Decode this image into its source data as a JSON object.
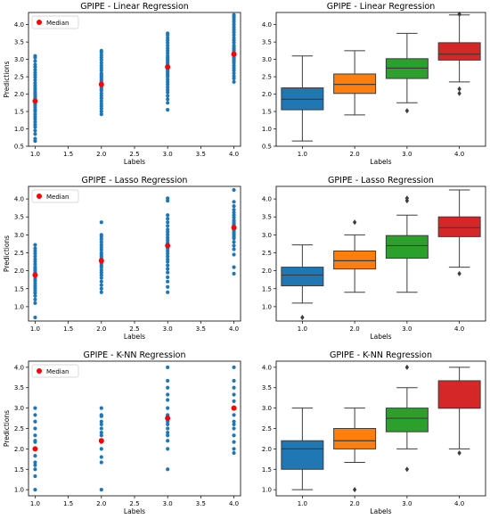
{
  "figure": {
    "title": "",
    "panels_desc": "3x2 grid"
  },
  "chart_data": [
    {
      "type": "scatter",
      "title": "GPIPE - Linear Regression",
      "xlabel": "Labels",
      "ylabel": "Predictions",
      "xlim": [
        0.9,
        4.1
      ],
      "ylim": [
        0.5,
        4.35
      ],
      "xticks": [
        "1.0",
        "1.5",
        "2.0",
        "2.5",
        "3.0",
        "3.5",
        "4.0"
      ],
      "yticks": [
        "0.5",
        "1.0",
        "1.5",
        "2.0",
        "2.5",
        "3.0",
        "3.5",
        "4.0"
      ],
      "legend": {
        "label": "Median",
        "placement": "top-left"
      },
      "colors": {
        "points": "#1f77b4",
        "median": "#ff0000"
      },
      "series": [
        {
          "x": 1.0,
          "values": [
            0.65,
            0.72,
            0.85,
            0.95,
            1.05,
            1.12,
            1.2,
            1.28,
            1.35,
            1.42,
            1.5,
            1.55,
            1.62,
            1.68,
            1.72,
            1.78,
            1.85,
            1.9,
            1.95,
            2.0,
            2.05,
            2.12,
            2.18,
            2.25,
            2.32,
            2.4,
            2.48,
            2.55,
            2.62,
            2.7,
            2.78,
            2.85,
            2.95,
            3.05,
            3.1
          ]
        },
        {
          "x": 2.0,
          "values": [
            1.42,
            1.5,
            1.58,
            1.65,
            1.72,
            1.8,
            1.88,
            1.95,
            2.02,
            2.1,
            2.15,
            2.2,
            2.25,
            2.3,
            2.35,
            2.4,
            2.45,
            2.5,
            2.55,
            2.6,
            2.68,
            2.75,
            2.82,
            2.9,
            2.98,
            3.05,
            3.12,
            3.2,
            3.25
          ]
        },
        {
          "x": 3.0,
          "values": [
            1.55,
            1.75,
            1.85,
            1.95,
            2.05,
            2.12,
            2.2,
            2.28,
            2.35,
            2.42,
            2.5,
            2.55,
            2.6,
            2.65,
            2.7,
            2.75,
            2.8,
            2.85,
            2.9,
            2.95,
            3.0,
            3.05,
            3.1,
            3.18,
            3.25,
            3.32,
            3.4,
            3.48,
            3.55,
            3.62,
            3.7,
            3.75
          ]
        },
        {
          "x": 4.0,
          "values": [
            2.35,
            2.45,
            2.52,
            2.6,
            2.68,
            2.75,
            2.82,
            2.9,
            2.95,
            3.0,
            3.05,
            3.1,
            3.15,
            3.2,
            3.25,
            3.3,
            3.35,
            3.4,
            3.48,
            3.55,
            3.62,
            3.7,
            3.78,
            3.85,
            3.92,
            4.0,
            4.08,
            4.15,
            4.22,
            4.28
          ]
        }
      ],
      "medians": [
        {
          "x": 1.0,
          "y": 1.8
        },
        {
          "x": 2.0,
          "y": 2.28
        },
        {
          "x": 3.0,
          "y": 2.78
        },
        {
          "x": 4.0,
          "y": 3.15
        }
      ]
    },
    {
      "type": "box",
      "title": "GPIPE - Linear Regression",
      "xlabel": "Labels",
      "ylabel": "",
      "ylim": [
        0.5,
        4.35
      ],
      "yticks": [
        "0.5",
        "1.0",
        "1.5",
        "2.0",
        "2.5",
        "3.0",
        "3.5",
        "4.0"
      ],
      "categories": [
        "1.0",
        "2.0",
        "3.0",
        "4.0"
      ],
      "boxes": [
        {
          "label": "1.0",
          "whislo": 0.65,
          "q1": 1.55,
          "med": 1.85,
          "q3": 2.18,
          "whishi": 3.1,
          "fliers": [],
          "color": "#1f77b4"
        },
        {
          "label": "2.0",
          "whislo": 1.4,
          "q1": 2.02,
          "med": 2.28,
          "q3": 2.58,
          "whishi": 3.25,
          "fliers": [],
          "color": "#ff7f0e"
        },
        {
          "label": "3.0",
          "whislo": 1.75,
          "q1": 2.45,
          "med": 2.75,
          "q3": 3.02,
          "whishi": 3.75,
          "fliers": [
            1.52
          ],
          "color": "#2ca02c"
        },
        {
          "label": "4.0",
          "whislo": 2.35,
          "q1": 2.98,
          "med": 3.15,
          "q3": 3.48,
          "whishi": 4.28,
          "fliers": [
            2.15,
            2.02,
            4.3
          ],
          "color": "#d62728"
        }
      ]
    },
    {
      "type": "scatter",
      "title": "GPIPE - Lasso Regression",
      "xlabel": "Labels",
      "ylabel": "Predictions",
      "xlim": [
        0.9,
        4.1
      ],
      "ylim": [
        0.6,
        4.35
      ],
      "xticks": [
        "1.0",
        "1.5",
        "2.0",
        "2.5",
        "3.0",
        "3.5",
        "4.0"
      ],
      "yticks": [
        "1.0",
        "1.5",
        "2.0",
        "2.5",
        "3.0",
        "3.5",
        "4.0"
      ],
      "legend": {
        "label": "Median",
        "placement": "top-left"
      },
      "colors": {
        "points": "#1f77b4",
        "median": "#ff0000"
      },
      "series": [
        {
          "x": 1.0,
          "values": [
            0.7,
            1.1,
            1.2,
            1.3,
            1.38,
            1.45,
            1.52,
            1.58,
            1.65,
            1.72,
            1.78,
            1.85,
            1.9,
            1.95,
            2.0,
            2.05,
            2.1,
            2.18,
            2.25,
            2.32,
            2.4,
            2.48,
            2.55,
            2.62,
            2.72
          ]
        },
        {
          "x": 2.0,
          "values": [
            1.4,
            1.5,
            1.6,
            1.7,
            1.8,
            1.88,
            1.95,
            2.02,
            2.1,
            2.15,
            2.2,
            2.25,
            2.3,
            2.35,
            2.4,
            2.45,
            2.5,
            2.58,
            2.65,
            2.72,
            2.8,
            2.88,
            2.95,
            3.0,
            3.35
          ]
        },
        {
          "x": 3.0,
          "values": [
            1.4,
            1.55,
            1.7,
            1.82,
            1.95,
            2.05,
            2.15,
            2.25,
            2.32,
            2.4,
            2.48,
            2.55,
            2.62,
            2.7,
            2.78,
            2.85,
            2.92,
            3.0,
            3.08,
            3.15,
            3.25,
            3.35,
            3.45,
            3.55,
            3.95,
            4.02
          ]
        },
        {
          "x": 4.0,
          "values": [
            1.92,
            2.1,
            2.45,
            2.6,
            2.7,
            2.8,
            2.9,
            2.95,
            3.0,
            3.05,
            3.1,
            3.15,
            3.2,
            3.25,
            3.3,
            3.35,
            3.4,
            3.48,
            3.55,
            3.62,
            3.7,
            3.8,
            3.92,
            4.25
          ]
        }
      ],
      "medians": [
        {
          "x": 1.0,
          "y": 1.88
        },
        {
          "x": 2.0,
          "y": 2.28
        },
        {
          "x": 3.0,
          "y": 2.7
        },
        {
          "x": 4.0,
          "y": 3.2
        }
      ]
    },
    {
      "type": "box",
      "title": "GPIPE - Lasso Regression",
      "xlabel": "Labels",
      "ylabel": "",
      "ylim": [
        0.6,
        4.35
      ],
      "yticks": [
        "1.0",
        "1.5",
        "2.0",
        "2.5",
        "3.0",
        "3.5",
        "4.0"
      ],
      "categories": [
        "1.0",
        "2.0",
        "3.0",
        "4.0"
      ],
      "boxes": [
        {
          "label": "1.0",
          "whislo": 1.1,
          "q1": 1.58,
          "med": 1.88,
          "q3": 2.1,
          "whishi": 2.72,
          "fliers": [
            0.7
          ],
          "color": "#1f77b4"
        },
        {
          "label": "2.0",
          "whislo": 1.4,
          "q1": 2.05,
          "med": 2.28,
          "q3": 2.55,
          "whishi": 3.0,
          "fliers": [
            3.35
          ],
          "color": "#ff7f0e"
        },
        {
          "label": "3.0",
          "whislo": 1.4,
          "q1": 2.35,
          "med": 2.7,
          "q3": 2.98,
          "whishi": 3.55,
          "fliers": [
            3.95,
            4.02
          ],
          "color": "#2ca02c"
        },
        {
          "label": "4.0",
          "whislo": 2.1,
          "q1": 2.95,
          "med": 3.2,
          "q3": 3.5,
          "whishi": 4.25,
          "fliers": [
            1.92
          ],
          "color": "#d62728"
        }
      ]
    },
    {
      "type": "scatter",
      "title": "GPIPE - K-NN Regression",
      "xlabel": "Labels",
      "ylabel": "Predictions",
      "xlim": [
        0.9,
        4.1
      ],
      "ylim": [
        0.85,
        4.15
      ],
      "xticks": [
        "1.0",
        "1.5",
        "2.0",
        "2.5",
        "3.0",
        "3.5",
        "4.0"
      ],
      "yticks": [
        "1.0",
        "1.5",
        "2.0",
        "2.5",
        "3.0",
        "3.5",
        "4.0"
      ],
      "legend": {
        "label": "Median",
        "placement": "top-left"
      },
      "colors": {
        "points": "#1f77b4",
        "median": "#ff0000"
      },
      "series": [
        {
          "x": 1.0,
          "values": [
            1.0,
            1.33,
            1.5,
            1.6,
            1.67,
            1.83,
            2.0,
            2.17,
            2.2,
            2.33,
            2.5,
            2.67,
            2.83,
            3.0
          ]
        },
        {
          "x": 2.0,
          "values": [
            1.0,
            1.67,
            1.8,
            2.0,
            2.17,
            2.2,
            2.33,
            2.4,
            2.5,
            2.6,
            2.67,
            2.8,
            2.83,
            3.0
          ]
        },
        {
          "x": 3.0,
          "values": [
            1.5,
            2.0,
            2.2,
            2.33,
            2.4,
            2.5,
            2.6,
            2.67,
            2.75,
            2.8,
            2.83,
            3.0,
            3.2,
            3.33,
            3.5,
            3.67,
            4.0
          ]
        },
        {
          "x": 4.0,
          "values": [
            1.9,
            2.0,
            2.17,
            2.33,
            2.5,
            2.6,
            2.67,
            2.83,
            3.0,
            3.17,
            3.33,
            3.5,
            3.67,
            4.0
          ]
        }
      ],
      "medians": [
        {
          "x": 1.0,
          "y": 2.0
        },
        {
          "x": 2.0,
          "y": 2.2
        },
        {
          "x": 3.0,
          "y": 2.75
        },
        {
          "x": 4.0,
          "y": 3.0
        }
      ]
    },
    {
      "type": "box",
      "title": "GPIPE - K-NN Regression",
      "xlabel": "Labels",
      "ylabel": "",
      "ylim": [
        0.85,
        4.15
      ],
      "yticks": [
        "1.0",
        "1.5",
        "2.0",
        "2.5",
        "3.0",
        "3.5",
        "4.0"
      ],
      "categories": [
        "1.0",
        "2.0",
        "3.0",
        "4.0"
      ],
      "boxes": [
        {
          "label": "1.0",
          "whislo": 1.0,
          "q1": 1.5,
          "med": 2.0,
          "q3": 2.2,
          "whishi": 3.0,
          "fliers": [],
          "color": "#1f77b4"
        },
        {
          "label": "2.0",
          "whislo": 1.67,
          "q1": 2.0,
          "med": 2.2,
          "q3": 2.5,
          "whishi": 3.0,
          "fliers": [
            1.0
          ],
          "color": "#ff7f0e"
        },
        {
          "label": "3.0",
          "whislo": 2.0,
          "q1": 2.42,
          "med": 2.75,
          "q3": 3.0,
          "whishi": 3.5,
          "fliers": [
            1.5,
            4.0
          ],
          "color": "#2ca02c"
        },
        {
          "label": "4.0",
          "whislo": 2.0,
          "q1": 3.0,
          "med": 3.0,
          "q3": 3.67,
          "whishi": 4.0,
          "fliers": [
            1.9
          ],
          "color": "#d62728"
        }
      ]
    }
  ]
}
